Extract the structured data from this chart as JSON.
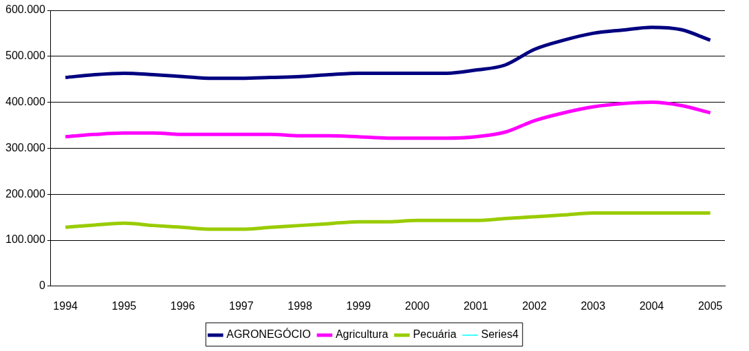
{
  "chart_data": {
    "type": "line",
    "categories": [
      "1994",
      null,
      "1995",
      null,
      "1996",
      null,
      "1997",
      null,
      "1998",
      null,
      "1999",
      null,
      "2000",
      null,
      "2001",
      null,
      "2002",
      null,
      "2003",
      null,
      "2004",
      null,
      "2005"
    ],
    "series": [
      {
        "name": "AGRONEGÓCIO",
        "color": "#000080",
        "values": [
          454000,
          460000,
          463000,
          460000,
          456000,
          452000,
          452000,
          454000,
          456000,
          460000,
          463000,
          463000,
          463000,
          463000,
          470000,
          481000,
          515000,
          535000,
          550000,
          557000,
          563000,
          558000,
          535000
        ]
      },
      {
        "name": "Agricultura",
        "color": "#ff00ff",
        "values": [
          325000,
          330000,
          333000,
          333000,
          330000,
          330000,
          330000,
          330000,
          327000,
          327000,
          325000,
          322000,
          322000,
          322000,
          325000,
          335000,
          360000,
          377000,
          390000,
          397000,
          400000,
          393000,
          377000
        ]
      },
      {
        "name": "Pecuária",
        "color": "#99cc00",
        "values": [
          128000,
          133000,
          137000,
          132000,
          128000,
          124000,
          124000,
          128000,
          132000,
          136000,
          140000,
          140000,
          143000,
          143000,
          143000,
          147000,
          151000,
          155000,
          159000,
          159000,
          159000,
          159000,
          159000
        ]
      },
      {
        "name": "Series4",
        "color": "#00ffff",
        "values": [
          null,
          null,
          null,
          null,
          null,
          null,
          null,
          null,
          null,
          null,
          null,
          null,
          null,
          null,
          null,
          null,
          null,
          null,
          null,
          null,
          null,
          null,
          null
        ]
      }
    ],
    "ylim": [
      0,
      600000
    ],
    "yticks": [
      0,
      {
        "value": 100000,
        "label": "100.000"
      },
      {
        "value": 200000,
        "label": "200.000"
      },
      {
        "value": 300000,
        "label": "300.000"
      },
      {
        "value": 400000,
        "label": "400.000"
      },
      {
        "value": 500000,
        "label": "500.000"
      },
      {
        "value": 600000,
        "label": "600.000"
      }
    ],
    "grid": "y",
    "legend": "bottom",
    "marker": "none",
    "line_style": "solid"
  }
}
